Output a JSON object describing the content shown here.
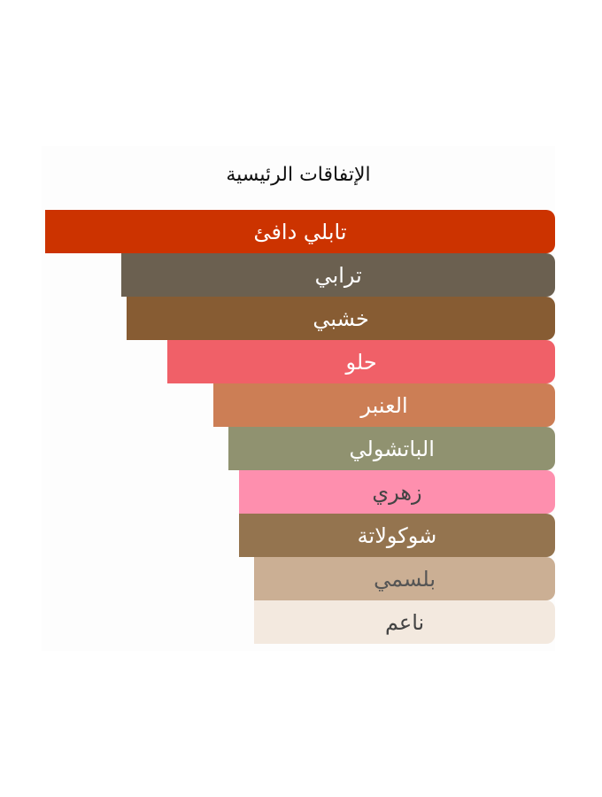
{
  "chart_data": {
    "type": "bar",
    "orientation": "horizontal",
    "title": "الإتفاقات الرئيسية",
    "categories": [
      "تابلي دافئ",
      "ترابي",
      "خشبي",
      "حلو",
      "العنبر",
      "الباتشولي",
      "زهري",
      "شوكولاتة",
      "بلسمي",
      "ناعم"
    ],
    "values": [
      100,
      85,
      84,
      76,
      67,
      64,
      62,
      62,
      59,
      59
    ],
    "xlim": [
      0,
      100
    ],
    "colors": [
      "#cc3300",
      "#6b6050",
      "#875c33",
      "#f06068",
      "#cc7e55",
      "#909270",
      "#fe8fae",
      "#94744f",
      "#cbaf94",
      "#f3e9df"
    ],
    "text_colors": [
      "#ffffff",
      "#ffffff",
      "#ffffff",
      "#ffffff",
      "#ffffff",
      "#ffffff",
      "#444444",
      "#ffffff",
      "#555555",
      "#444444"
    ],
    "grid": false,
    "legend": "none"
  }
}
